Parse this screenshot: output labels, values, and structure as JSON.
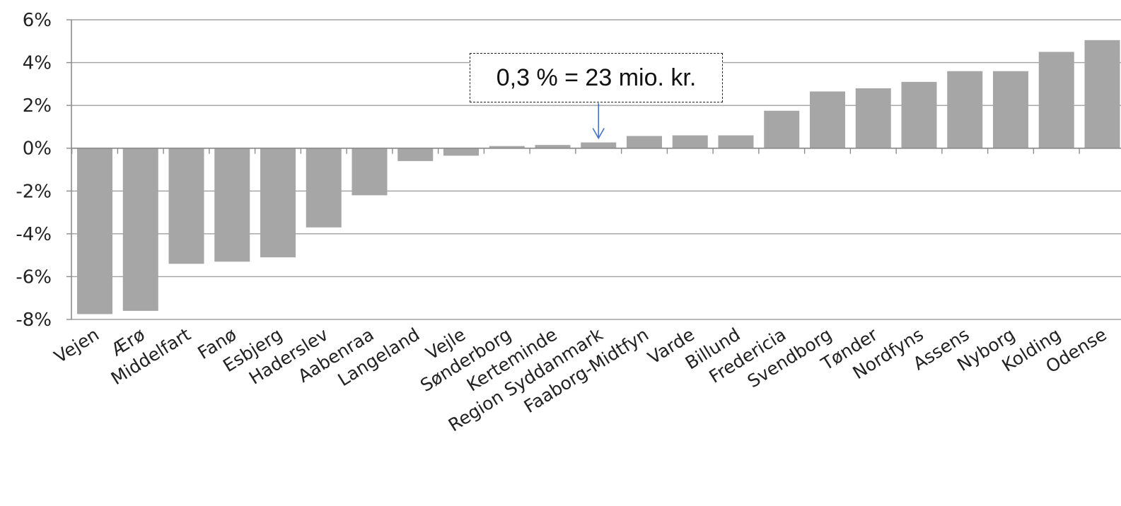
{
  "chart_data": {
    "type": "bar",
    "title": "",
    "xlabel": "",
    "ylabel": "",
    "ylim": [
      -8,
      6
    ],
    "y_ticks": [
      "6%",
      "4%",
      "2%",
      "0%",
      "-2%",
      "-4%",
      "-6%",
      "-8%"
    ],
    "y_tick_values": [
      6,
      4,
      2,
      0,
      -2,
      -4,
      -6,
      -8
    ],
    "grid": true,
    "bar_color": "#a6a6a6",
    "categories": [
      "Vejen",
      "Ærø",
      "Middelfart",
      "Fanø",
      "Esbjerg",
      "Haderslev",
      "Aabenraa",
      "Langeland",
      "Vejle",
      "Sønderborg",
      "Kerteminde",
      "Region Syddanmark",
      "Faaborg-Midtfyn",
      "Varde",
      "Billund",
      "Fredericia",
      "Svendborg",
      "Tønder",
      "Nordfyns",
      "Assens",
      "Nyborg",
      "Kolding",
      "Odense"
    ],
    "values": [
      -7.75,
      -7.6,
      -5.4,
      -5.3,
      -5.1,
      -3.7,
      -2.2,
      -0.6,
      -0.35,
      0.1,
      0.15,
      0.27,
      0.57,
      0.6,
      0.6,
      1.75,
      2.65,
      2.8,
      3.1,
      3.6,
      3.6,
      4.5,
      5.05
    ],
    "annotation": {
      "text": "0,3 % = 23 mio. kr.",
      "target_category": "Region Syddanmark",
      "arrow_color": "#4472c4"
    }
  }
}
